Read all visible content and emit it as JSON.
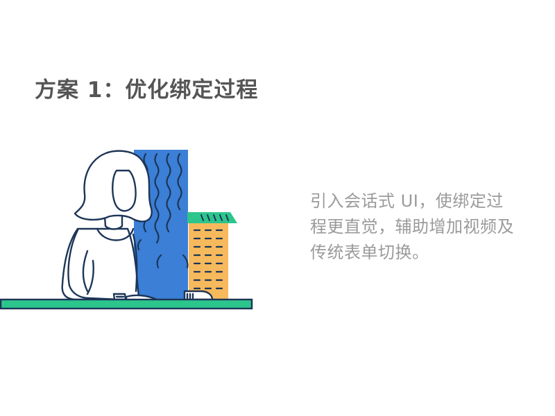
{
  "slide": {
    "title": "方案 1：优化绑定过程",
    "description_lines": [
      "引入会话式 UI，使绑定过",
      "程更直觉，辅助增加视频及",
      "传统表单切换。"
    ],
    "colors": {
      "title": "#555555",
      "description": "#9a9a9a",
      "blue_building": "#3b7fd6",
      "orange_building": "#f6b95c",
      "green_accent": "#2cc58c",
      "outline": "#1d3557"
    },
    "illustration_name": "woman-at-desk-with-buildings"
  }
}
